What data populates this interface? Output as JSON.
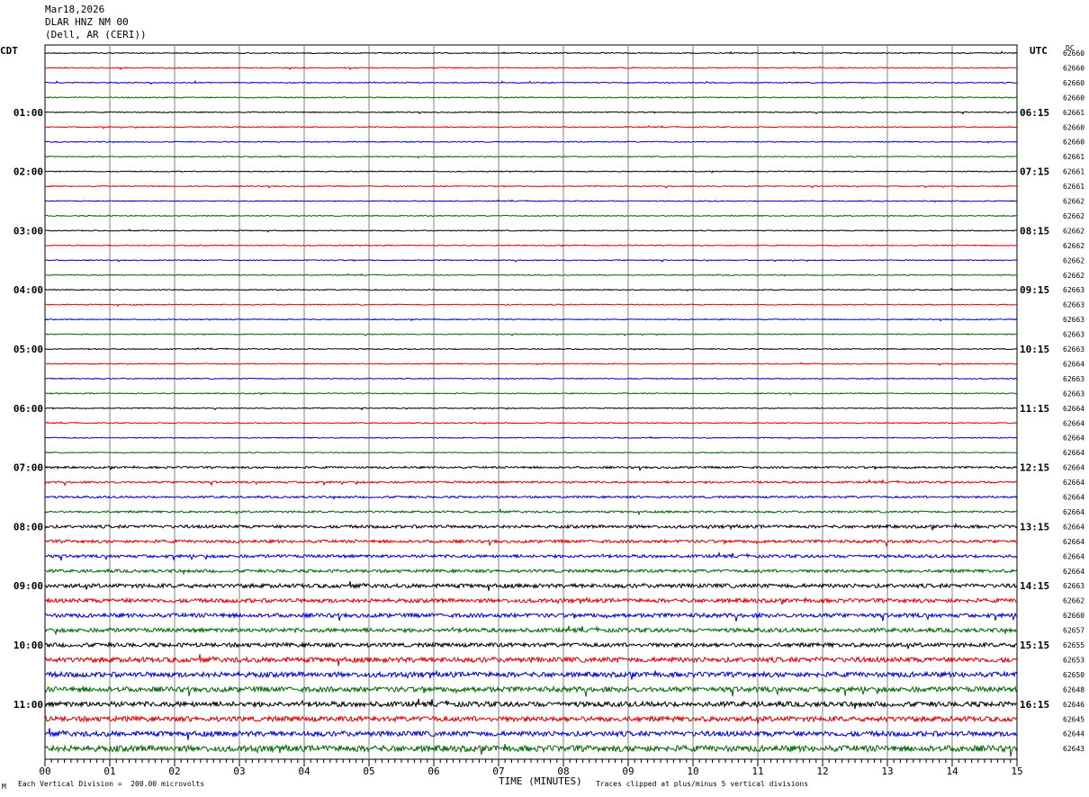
{
  "header": {
    "date": "Mar18,2026",
    "station": "DLAR HNZ NM 00",
    "location": "(Dell, AR (CERI))"
  },
  "left_timezone": "CDT",
  "right_timezone": "UTC",
  "dc_label": "DC",
  "footer": {
    "scale": "Each Vertical Division =  200.00 microvolts",
    "clip": "Traces clipped at plus/minus 5 vertical divisions",
    "corner": "M"
  },
  "colors": {
    "trace_cycle": [
      "#000000",
      "#dd0000",
      "#0000cc",
      "#006600"
    ],
    "grid": "#808080"
  },
  "chart_data": {
    "type": "line",
    "xlabel": "TIME (MINUTES)",
    "xlim": [
      0,
      15
    ],
    "x_ticks": [
      "00",
      "01",
      "02",
      "03",
      "04",
      "05",
      "06",
      "07",
      "08",
      "09",
      "10",
      "11",
      "12",
      "13",
      "14",
      "15"
    ],
    "left_hour_labels": [
      "01:00",
      "02:00",
      "03:00",
      "04:00",
      "05:00",
      "06:00",
      "07:00",
      "08:00",
      "09:00",
      "10:00",
      "11:00"
    ],
    "right_hour_labels": [
      "06:15",
      "07:15",
      "08:15",
      "09:15",
      "10:15",
      "11:15",
      "12:15",
      "13:15",
      "14:15",
      "15:15",
      "16:15"
    ],
    "dc_values": [
      "62660",
      "62660",
      "62660",
      "62660",
      "62661",
      "62660",
      "62660",
      "62661",
      "62661",
      "62661",
      "62662",
      "62662",
      "62662",
      "62662",
      "62662",
      "62662",
      "62663",
      "62663",
      "62663",
      "62663",
      "62663",
      "62664",
      "62663",
      "62663",
      "62664",
      "62664",
      "62664",
      "62664",
      "62664",
      "62664",
      "62664",
      "62664",
      "62664",
      "62664",
      "62664",
      "62664",
      "62663",
      "62662",
      "62660",
      "62657",
      "62655",
      "62653",
      "62650",
      "62648",
      "62646",
      "62645",
      "62644",
      "62643"
    ],
    "trace_activity": [
      1,
      1,
      1,
      1,
      1,
      1,
      1,
      1,
      1,
      1,
      1,
      1,
      1,
      1,
      1,
      1,
      1,
      1,
      1,
      1,
      1,
      1,
      1,
      1,
      1,
      1,
      1,
      1,
      2,
      2,
      2,
      2,
      3,
      3,
      3,
      3,
      4,
      4,
      4,
      4,
      4,
      5,
      5,
      5,
      5,
      5,
      5,
      6
    ]
  }
}
